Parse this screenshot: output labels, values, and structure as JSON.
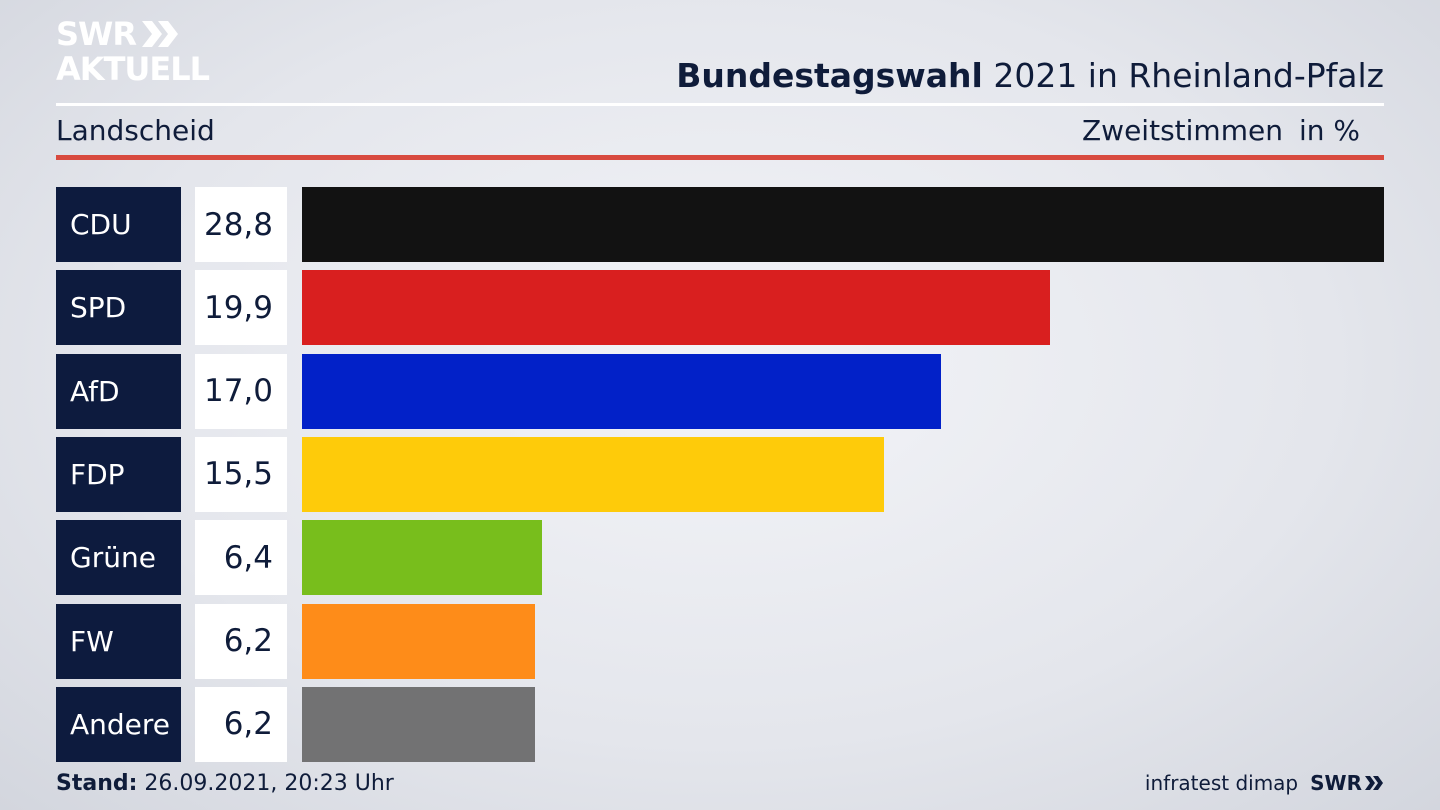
{
  "brand": {
    "logo_top": "SWR",
    "logo_bottom": "AKTUELL"
  },
  "header": {
    "title_bold": "Bundestagswahl",
    "title_rest": " 2021 in Rheinland-Pfalz",
    "region": "Landscheid",
    "metric": "Zweitstimmen",
    "unit": "in %"
  },
  "chart_data": {
    "type": "bar",
    "orientation": "horizontal",
    "categories": [
      "CDU",
      "SPD",
      "AfD",
      "FDP",
      "Grüne",
      "FW",
      "Andere"
    ],
    "values": [
      28.8,
      19.9,
      17.0,
      15.5,
      6.4,
      6.2,
      6.2
    ],
    "value_labels": [
      "28,8",
      "19,9",
      "17,0",
      "15,5",
      "6,4",
      "6,2",
      "6,2"
    ],
    "colors": [
      "#121212",
      "#d91f1f",
      "#0221c8",
      "#fecb0a",
      "#78be1c",
      "#fe8c19",
      "#727273"
    ],
    "xlim": [
      0,
      28.8
    ],
    "grid": false
  },
  "footer": {
    "stand_label": "Stand:",
    "stand_value": " 26.09.2021, 20:23 Uhr",
    "source": "infratest dimap",
    "broadcaster": "SWR"
  }
}
